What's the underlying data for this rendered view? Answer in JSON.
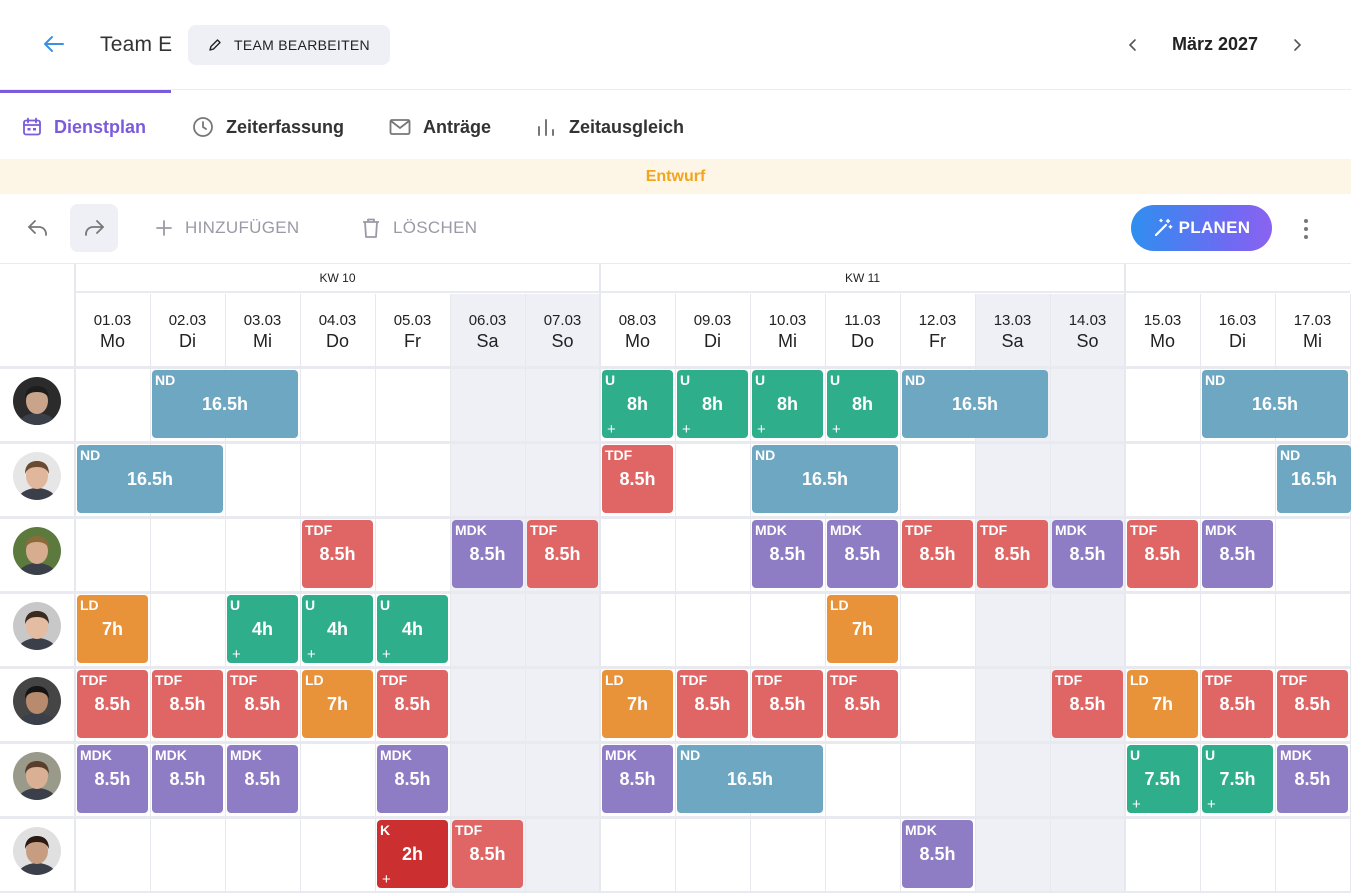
{
  "header": {
    "team_name": "Team E",
    "edit_label": "TEAM BEARBEITEN",
    "month_label": "März 2027"
  },
  "tabs": [
    {
      "label": "Dienstplan",
      "icon": "calendar-icon",
      "active": true
    },
    {
      "label": "Zeiterfassung",
      "icon": "clock-icon",
      "active": false
    },
    {
      "label": "Anträge",
      "icon": "mail-icon",
      "active": false
    },
    {
      "label": "Zeitausgleich",
      "icon": "bar-chart-icon",
      "active": false
    }
  ],
  "banner": {
    "text": "Entwurf"
  },
  "toolbar": {
    "add_label": "HINZUFÜGEN",
    "delete_label": "LÖSCHEN",
    "plan_label": "PLANEN"
  },
  "colors": {
    "accent": "#7a5bdc",
    "ND": "#6ea7c1",
    "U": "#2fae8c",
    "TDF": "#e06666",
    "MDK": "#8e7cc4",
    "LD": "#e8923a",
    "K": "#cc2f2f",
    "draft": "#f2a51c"
  },
  "weeks": [
    "KW 10",
    "KW 11"
  ],
  "days": [
    {
      "date": "01.03",
      "wd": "Mo",
      "weekend": false
    },
    {
      "date": "02.03",
      "wd": "Di",
      "weekend": false
    },
    {
      "date": "03.03",
      "wd": "Mi",
      "weekend": false
    },
    {
      "date": "04.03",
      "wd": "Do",
      "weekend": false
    },
    {
      "date": "05.03",
      "wd": "Fr",
      "weekend": false
    },
    {
      "date": "06.03",
      "wd": "Sa",
      "weekend": true
    },
    {
      "date": "07.03",
      "wd": "So",
      "weekend": true
    },
    {
      "date": "08.03",
      "wd": "Mo",
      "weekend": false
    },
    {
      "date": "09.03",
      "wd": "Di",
      "weekend": false
    },
    {
      "date": "10.03",
      "wd": "Mi",
      "weekend": false
    },
    {
      "date": "11.03",
      "wd": "Do",
      "weekend": false
    },
    {
      "date": "12.03",
      "wd": "Fr",
      "weekend": false
    },
    {
      "date": "13.03",
      "wd": "Sa",
      "weekend": true
    },
    {
      "date": "14.03",
      "wd": "So",
      "weekend": true
    },
    {
      "date": "15.03",
      "wd": "Mo",
      "weekend": false
    },
    {
      "date": "16.03",
      "wd": "Di",
      "weekend": false
    },
    {
      "date": "17.03",
      "wd": "Mi",
      "weekend": false
    }
  ],
  "employees": [
    {
      "avatar": "avatar",
      "shifts": [
        {
          "day": 1,
          "span": 2,
          "code": "ND",
          "hours": "16.5h",
          "plus": false
        },
        {
          "day": 7,
          "span": 1,
          "code": "U",
          "hours": "8h",
          "plus": true
        },
        {
          "day": 8,
          "span": 1,
          "code": "U",
          "hours": "8h",
          "plus": true
        },
        {
          "day": 9,
          "span": 1,
          "code": "U",
          "hours": "8h",
          "plus": true
        },
        {
          "day": 10,
          "span": 1,
          "code": "U",
          "hours": "8h",
          "plus": true
        },
        {
          "day": 11,
          "span": 2,
          "code": "ND",
          "hours": "16.5h",
          "plus": false
        },
        {
          "day": 15,
          "span": 2,
          "code": "ND",
          "hours": "16.5h",
          "plus": false
        }
      ]
    },
    {
      "avatar": "avatar",
      "shifts": [
        {
          "day": 0,
          "span": 2,
          "code": "ND",
          "hours": "16.5h",
          "plus": false
        },
        {
          "day": 7,
          "span": 1,
          "code": "TDF",
          "hours": "8.5h",
          "plus": false
        },
        {
          "day": 9,
          "span": 2,
          "code": "ND",
          "hours": "16.5h",
          "plus": false
        },
        {
          "day": 16,
          "span": 2,
          "code": "ND",
          "hours": "16.5h",
          "plus": false
        }
      ]
    },
    {
      "avatar": "avatar",
      "shifts": [
        {
          "day": 3,
          "span": 1,
          "code": "TDF",
          "hours": "8.5h",
          "plus": false
        },
        {
          "day": 5,
          "span": 1,
          "code": "MDK",
          "hours": "8.5h",
          "plus": false
        },
        {
          "day": 6,
          "span": 1,
          "code": "TDF",
          "hours": "8.5h",
          "plus": false
        },
        {
          "day": 9,
          "span": 1,
          "code": "MDK",
          "hours": "8.5h",
          "plus": false
        },
        {
          "day": 10,
          "span": 1,
          "code": "MDK",
          "hours": "8.5h",
          "plus": false
        },
        {
          "day": 11,
          "span": 1,
          "code": "TDF",
          "hours": "8.5h",
          "plus": false
        },
        {
          "day": 12,
          "span": 1,
          "code": "TDF",
          "hours": "8.5h",
          "plus": false
        },
        {
          "day": 13,
          "span": 1,
          "code": "MDK",
          "hours": "8.5h",
          "plus": false
        },
        {
          "day": 14,
          "span": 1,
          "code": "TDF",
          "hours": "8.5h",
          "plus": false
        },
        {
          "day": 15,
          "span": 1,
          "code": "MDK",
          "hours": "8.5h",
          "plus": false
        }
      ]
    },
    {
      "avatar": "avatar",
      "shifts": [
        {
          "day": 0,
          "span": 1,
          "code": "LD",
          "hours": "7h",
          "plus": false
        },
        {
          "day": 2,
          "span": 1,
          "code": "U",
          "hours": "4h",
          "plus": true
        },
        {
          "day": 3,
          "span": 1,
          "code": "U",
          "hours": "4h",
          "plus": true
        },
        {
          "day": 4,
          "span": 1,
          "code": "U",
          "hours": "4h",
          "plus": true
        },
        {
          "day": 10,
          "span": 1,
          "code": "LD",
          "hours": "7h",
          "plus": false
        }
      ]
    },
    {
      "avatar": "avatar",
      "shifts": [
        {
          "day": 0,
          "span": 1,
          "code": "TDF",
          "hours": "8.5h",
          "plus": false
        },
        {
          "day": 1,
          "span": 1,
          "code": "TDF",
          "hours": "8.5h",
          "plus": false
        },
        {
          "day": 2,
          "span": 1,
          "code": "TDF",
          "hours": "8.5h",
          "plus": false
        },
        {
          "day": 3,
          "span": 1,
          "code": "LD",
          "hours": "7h",
          "plus": false
        },
        {
          "day": 4,
          "span": 1,
          "code": "TDF",
          "hours": "8.5h",
          "plus": false
        },
        {
          "day": 7,
          "span": 1,
          "code": "LD",
          "hours": "7h",
          "plus": false
        },
        {
          "day": 8,
          "span": 1,
          "code": "TDF",
          "hours": "8.5h",
          "plus": false
        },
        {
          "day": 9,
          "span": 1,
          "code": "TDF",
          "hours": "8.5h",
          "plus": false
        },
        {
          "day": 10,
          "span": 1,
          "code": "TDF",
          "hours": "8.5h",
          "plus": false
        },
        {
          "day": 13,
          "span": 1,
          "code": "TDF",
          "hours": "8.5h",
          "plus": false
        },
        {
          "day": 14,
          "span": 1,
          "code": "LD",
          "hours": "7h",
          "plus": false
        },
        {
          "day": 15,
          "span": 1,
          "code": "TDF",
          "hours": "8.5h",
          "plus": false
        },
        {
          "day": 16,
          "span": 1,
          "code": "TDF",
          "hours": "8.5h",
          "plus": false
        }
      ]
    },
    {
      "avatar": "avatar",
      "shifts": [
        {
          "day": 0,
          "span": 1,
          "code": "MDK",
          "hours": "8.5h",
          "plus": false
        },
        {
          "day": 1,
          "span": 1,
          "code": "MDK",
          "hours": "8.5h",
          "plus": false
        },
        {
          "day": 2,
          "span": 1,
          "code": "MDK",
          "hours": "8.5h",
          "plus": false
        },
        {
          "day": 4,
          "span": 1,
          "code": "MDK",
          "hours": "8.5h",
          "plus": false
        },
        {
          "day": 7,
          "span": 1,
          "code": "MDK",
          "hours": "8.5h",
          "plus": false
        },
        {
          "day": 8,
          "span": 2,
          "code": "ND",
          "hours": "16.5h",
          "plus": false
        },
        {
          "day": 14,
          "span": 1,
          "code": "U",
          "hours": "7.5h",
          "plus": true
        },
        {
          "day": 15,
          "span": 1,
          "code": "U",
          "hours": "7.5h",
          "plus": true
        },
        {
          "day": 16,
          "span": 1,
          "code": "MDK",
          "hours": "8.5h",
          "plus": false
        }
      ]
    },
    {
      "avatar": "avatar",
      "shifts": [
        {
          "day": 4,
          "span": 1,
          "code": "K",
          "hours": "2h",
          "plus": true
        },
        {
          "day": 5,
          "span": 1,
          "code": "TDF",
          "hours": "8.5h",
          "plus": false
        },
        {
          "day": 11,
          "span": 1,
          "code": "MDK",
          "hours": "8.5h",
          "plus": false
        }
      ]
    }
  ]
}
